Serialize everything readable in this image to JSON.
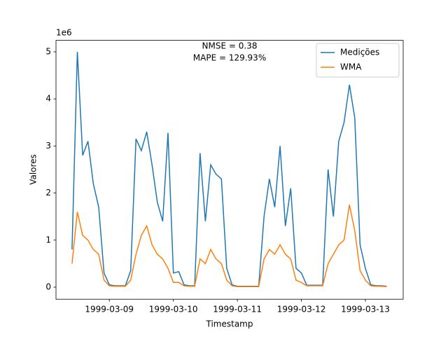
{
  "chart_data": {
    "type": "line",
    "annotations": [
      "NMSE = 0.38",
      "MAPE = 129.93%"
    ],
    "xlabel": "Timestamp",
    "ylabel": "Valores",
    "y_offset_label": "1e6",
    "x": [
      "1999-03-08 10:00",
      "1999-03-08 12:00",
      "1999-03-08 14:00",
      "1999-03-08 16:00",
      "1999-03-08 18:00",
      "1999-03-08 20:00",
      "1999-03-08 22:00",
      "1999-03-09 00:00",
      "1999-03-09 02:00",
      "1999-03-09 04:00",
      "1999-03-09 06:00",
      "1999-03-09 08:00",
      "1999-03-09 10:00",
      "1999-03-09 12:00",
      "1999-03-09 14:00",
      "1999-03-09 16:00",
      "1999-03-09 18:00",
      "1999-03-09 20:00",
      "1999-03-09 22:00",
      "1999-03-10 00:00",
      "1999-03-10 02:00",
      "1999-03-10 04:00",
      "1999-03-10 06:00",
      "1999-03-10 08:00",
      "1999-03-10 10:00",
      "1999-03-10 12:00",
      "1999-03-10 14:00",
      "1999-03-10 16:00",
      "1999-03-10 18:00",
      "1999-03-10 20:00",
      "1999-03-10 22:00",
      "1999-03-11 00:00",
      "1999-03-11 02:00",
      "1999-03-11 04:00",
      "1999-03-11 06:00",
      "1999-03-11 08:00",
      "1999-03-11 10:00",
      "1999-03-11 12:00",
      "1999-03-11 14:00",
      "1999-03-11 16:00",
      "1999-03-11 18:00",
      "1999-03-11 20:00",
      "1999-03-11 22:00",
      "1999-03-12 00:00",
      "1999-03-12 02:00",
      "1999-03-12 04:00",
      "1999-03-12 06:00",
      "1999-03-12 08:00",
      "1999-03-12 10:00",
      "1999-03-12 12:00",
      "1999-03-12 14:00",
      "1999-03-12 16:00",
      "1999-03-12 18:00",
      "1999-03-12 20:00",
      "1999-03-12 22:00",
      "1999-03-13 00:00",
      "1999-03-13 02:00",
      "1999-03-13 04:00",
      "1999-03-13 06:00",
      "1999-03-13 08:00"
    ],
    "series": [
      {
        "name": "Medições",
        "color": "#1f77b4",
        "values": [
          0.8,
          5.0,
          2.8,
          3.1,
          2.2,
          1.7,
          0.3,
          0.05,
          0.03,
          0.03,
          0.03,
          0.35,
          3.15,
          2.9,
          3.3,
          2.6,
          1.8,
          1.4,
          3.28,
          0.3,
          0.33,
          0.05,
          0.03,
          0.03,
          2.85,
          1.4,
          2.6,
          2.4,
          2.3,
          0.4,
          0.05,
          0.02,
          0.02,
          0.02,
          0.02,
          0.02,
          1.5,
          2.3,
          1.7,
          3.0,
          1.3,
          2.1,
          0.4,
          0.3,
          0.04,
          0.04,
          0.04,
          0.04,
          2.5,
          1.5,
          3.1,
          3.5,
          4.3,
          3.6,
          0.9,
          0.4,
          0.05,
          0.03,
          0.03,
          0.02
        ]
      },
      {
        "name": "WMA",
        "color": "#ff7f0e",
        "values": [
          0.5,
          1.6,
          1.1,
          1.0,
          0.8,
          0.7,
          0.15,
          0.03,
          0.02,
          0.02,
          0.02,
          0.15,
          0.7,
          1.1,
          1.3,
          0.9,
          0.7,
          0.6,
          0.4,
          0.1,
          0.1,
          0.03,
          0.02,
          0.02,
          0.6,
          0.5,
          0.8,
          0.6,
          0.5,
          0.15,
          0.03,
          0.01,
          0.01,
          0.01,
          0.01,
          0.01,
          0.6,
          0.8,
          0.7,
          0.9,
          0.7,
          0.6,
          0.15,
          0.1,
          0.03,
          0.03,
          0.03,
          0.03,
          0.5,
          0.7,
          0.9,
          1.0,
          1.75,
          1.2,
          0.35,
          0.15,
          0.03,
          0.02,
          0.02,
          0.01
        ]
      }
    ],
    "xlim": [
      "1999-03-08 04:00",
      "1999-03-13 14:10"
    ],
    "xticks": [
      "1999-03-09",
      "1999-03-10",
      "1999-03-11",
      "1999-03-12",
      "1999-03-13"
    ],
    "ylim": [
      -0.256,
      5.244
    ],
    "yticks": [
      0,
      1,
      2,
      3,
      4,
      5
    ],
    "legend": "upper right"
  }
}
